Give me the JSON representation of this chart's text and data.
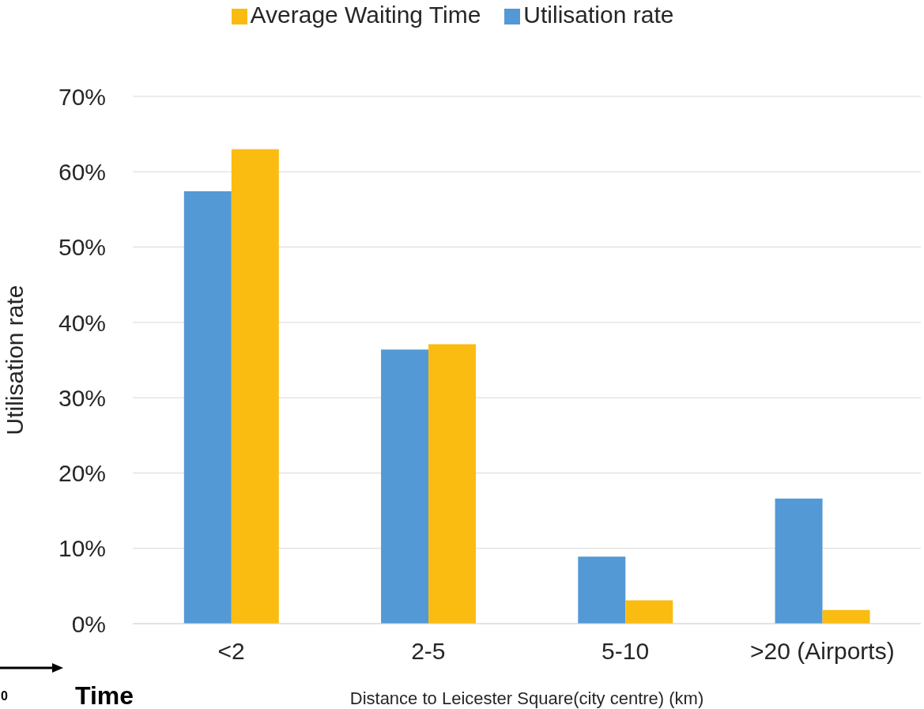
{
  "chart_data": {
    "type": "bar",
    "ylabel": "Utilisation rate",
    "xlabel": "Distance to Leicester Square(city centre) (km)",
    "categories": [
      "<2",
      "2-5",
      "5-10",
      ">20 (Airports)"
    ],
    "series": [
      {
        "name": "Utilisation rate",
        "color": "#5399d5",
        "values": [
          57.4,
          36.4,
          8.9,
          16.6
        ]
      },
      {
        "name": "Average Waiting Time",
        "color": "#fbbc11",
        "values": [
          63.0,
          37.1,
          3.1,
          1.8
        ]
      }
    ],
    "ylim": [
      0,
      70
    ],
    "yticks": [
      {
        "value": 0,
        "label": "0%"
      },
      {
        "value": 10,
        "label": "10%"
      },
      {
        "value": 20,
        "label": "20%"
      },
      {
        "value": 30,
        "label": "30%"
      },
      {
        "value": 40,
        "label": "40%"
      },
      {
        "value": 50,
        "label": "50%"
      },
      {
        "value": 60,
        "label": "60%"
      },
      {
        "value": 70,
        "label": "70%"
      }
    ],
    "grid": "y",
    "legend": "top",
    "annotations": [
      "0",
      "Time"
    ]
  }
}
